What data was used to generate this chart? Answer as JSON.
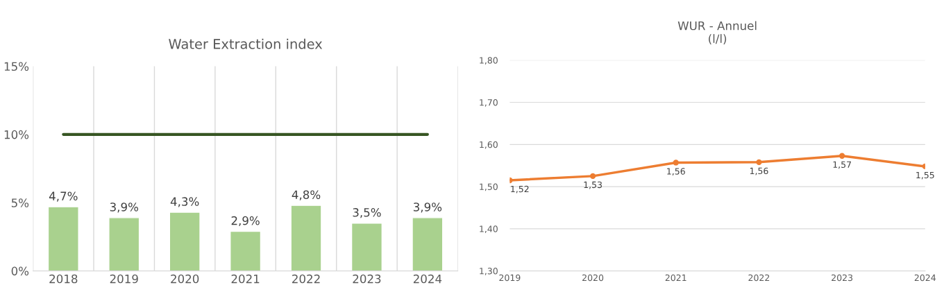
{
  "chart_data": [
    {
      "type": "bar",
      "title": "Water Extraction index",
      "categories": [
        "2018",
        "2019",
        "2020",
        "2021",
        "2022",
        "2023",
        "2024"
      ],
      "values": [
        4.7,
        3.9,
        4.3,
        2.9,
        4.8,
        3.5,
        3.9
      ],
      "color": "#a9d18e",
      "value_labels": [
        "4,7%",
        "3,9%",
        "4,3%",
        "2,9%",
        "4,8%",
        "3,5%",
        "3,9%"
      ],
      "ylim": [
        0,
        15
      ],
      "yticks": [
        {
          "value": 0,
          "label": "0%"
        },
        {
          "value": 5,
          "label": "5%"
        },
        {
          "value": 10,
          "label": "10%"
        },
        {
          "value": 15,
          "label": "15%"
        }
      ],
      "ref_lines": [
        {
          "axis": "y",
          "value": 10,
          "label": null,
          "color": "#375623"
        }
      ],
      "grid": "x"
    },
    {
      "type": "line",
      "title": "WUR - Annuel\n(l/l)",
      "categories": [
        "2019",
        "2020",
        "2021",
        "2022",
        "2023",
        "2024"
      ],
      "values": [
        1.515,
        1.525,
        1.557,
        1.558,
        1.573,
        1.548
      ],
      "color": "#ed7d31",
      "marker": "circle",
      "value_labels": [
        "1,52",
        "1,53",
        "1,56",
        "1,56",
        "1,57",
        "1,55"
      ],
      "ylim": [
        1.3,
        1.8
      ],
      "yticks": [
        {
          "value": 1.3,
          "label": "1,30"
        },
        {
          "value": 1.4,
          "label": "1,40"
        },
        {
          "value": 1.5,
          "label": "1,50"
        },
        {
          "value": 1.6,
          "label": "1,60"
        },
        {
          "value": 1.7,
          "label": "1,70"
        },
        {
          "value": 1.8,
          "label": "1,80"
        }
      ],
      "grid": "y"
    }
  ]
}
